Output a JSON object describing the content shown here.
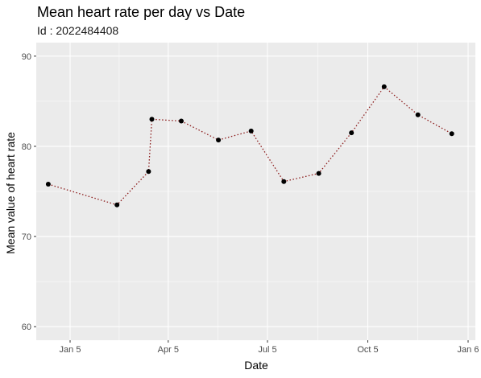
{
  "chart_data": {
    "type": "line",
    "title": "Mean heart rate per day vs Date",
    "subtitle": "Id : 2022484408",
    "xlabel": "Date",
    "ylabel": "Mean value of heart rate",
    "x_ticks": [
      "Jan 5",
      "Apr 5",
      "Jul 5",
      "Oct 5",
      "Jan 6"
    ],
    "y_ticks": [
      60,
      70,
      80,
      90
    ],
    "ylim": [
      58.5,
      91.5
    ],
    "grid": true,
    "legend": "none",
    "points": {
      "x": [
        "Dec 16",
        "Feb 17",
        "Mar 18",
        "Mar 21",
        "Apr 17",
        "May 21",
        "Jun 20",
        "Jul 20",
        "Aug 21",
        "Sep 20",
        "Oct 20",
        "Nov 20",
        "Dec 21"
      ],
      "y": [
        75.8,
        73.5,
        77.2,
        83.0,
        82.8,
        80.7,
        81.7,
        76.1,
        77.0,
        81.5,
        86.6,
        83.5,
        81.4
      ]
    },
    "colors": {
      "panel_background": "#ebebeb",
      "gridline": "#ffffff",
      "connector_line": "#8b1a1a",
      "point": "#000000"
    }
  }
}
